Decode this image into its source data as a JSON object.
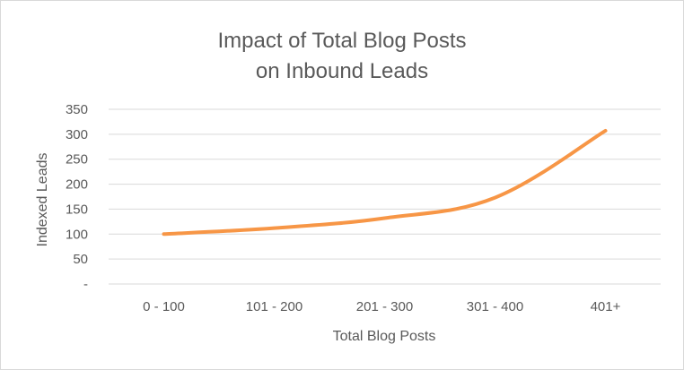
{
  "chart_data": {
    "type": "line",
    "title_lines": [
      "Impact of Total Blog Posts",
      "on Inbound Leads"
    ],
    "xlabel": "Total Blog Posts",
    "ylabel": "Indexed Leads",
    "categories": [
      "0 - 100",
      "101 - 200",
      "201 - 300",
      "301 - 400",
      "401+"
    ],
    "y_tick_labels": [
      "-",
      "50",
      "100",
      "150",
      "200",
      "250",
      "300",
      "350"
    ],
    "ylim": [
      0,
      350
    ],
    "series": [
      {
        "values": [
          100,
          112,
          132,
          173,
          307
        ]
      }
    ],
    "grid": true,
    "legend": "none"
  },
  "colors": {
    "line": "#f79646",
    "grid": "#d9d9d9",
    "text": "#595959"
  }
}
